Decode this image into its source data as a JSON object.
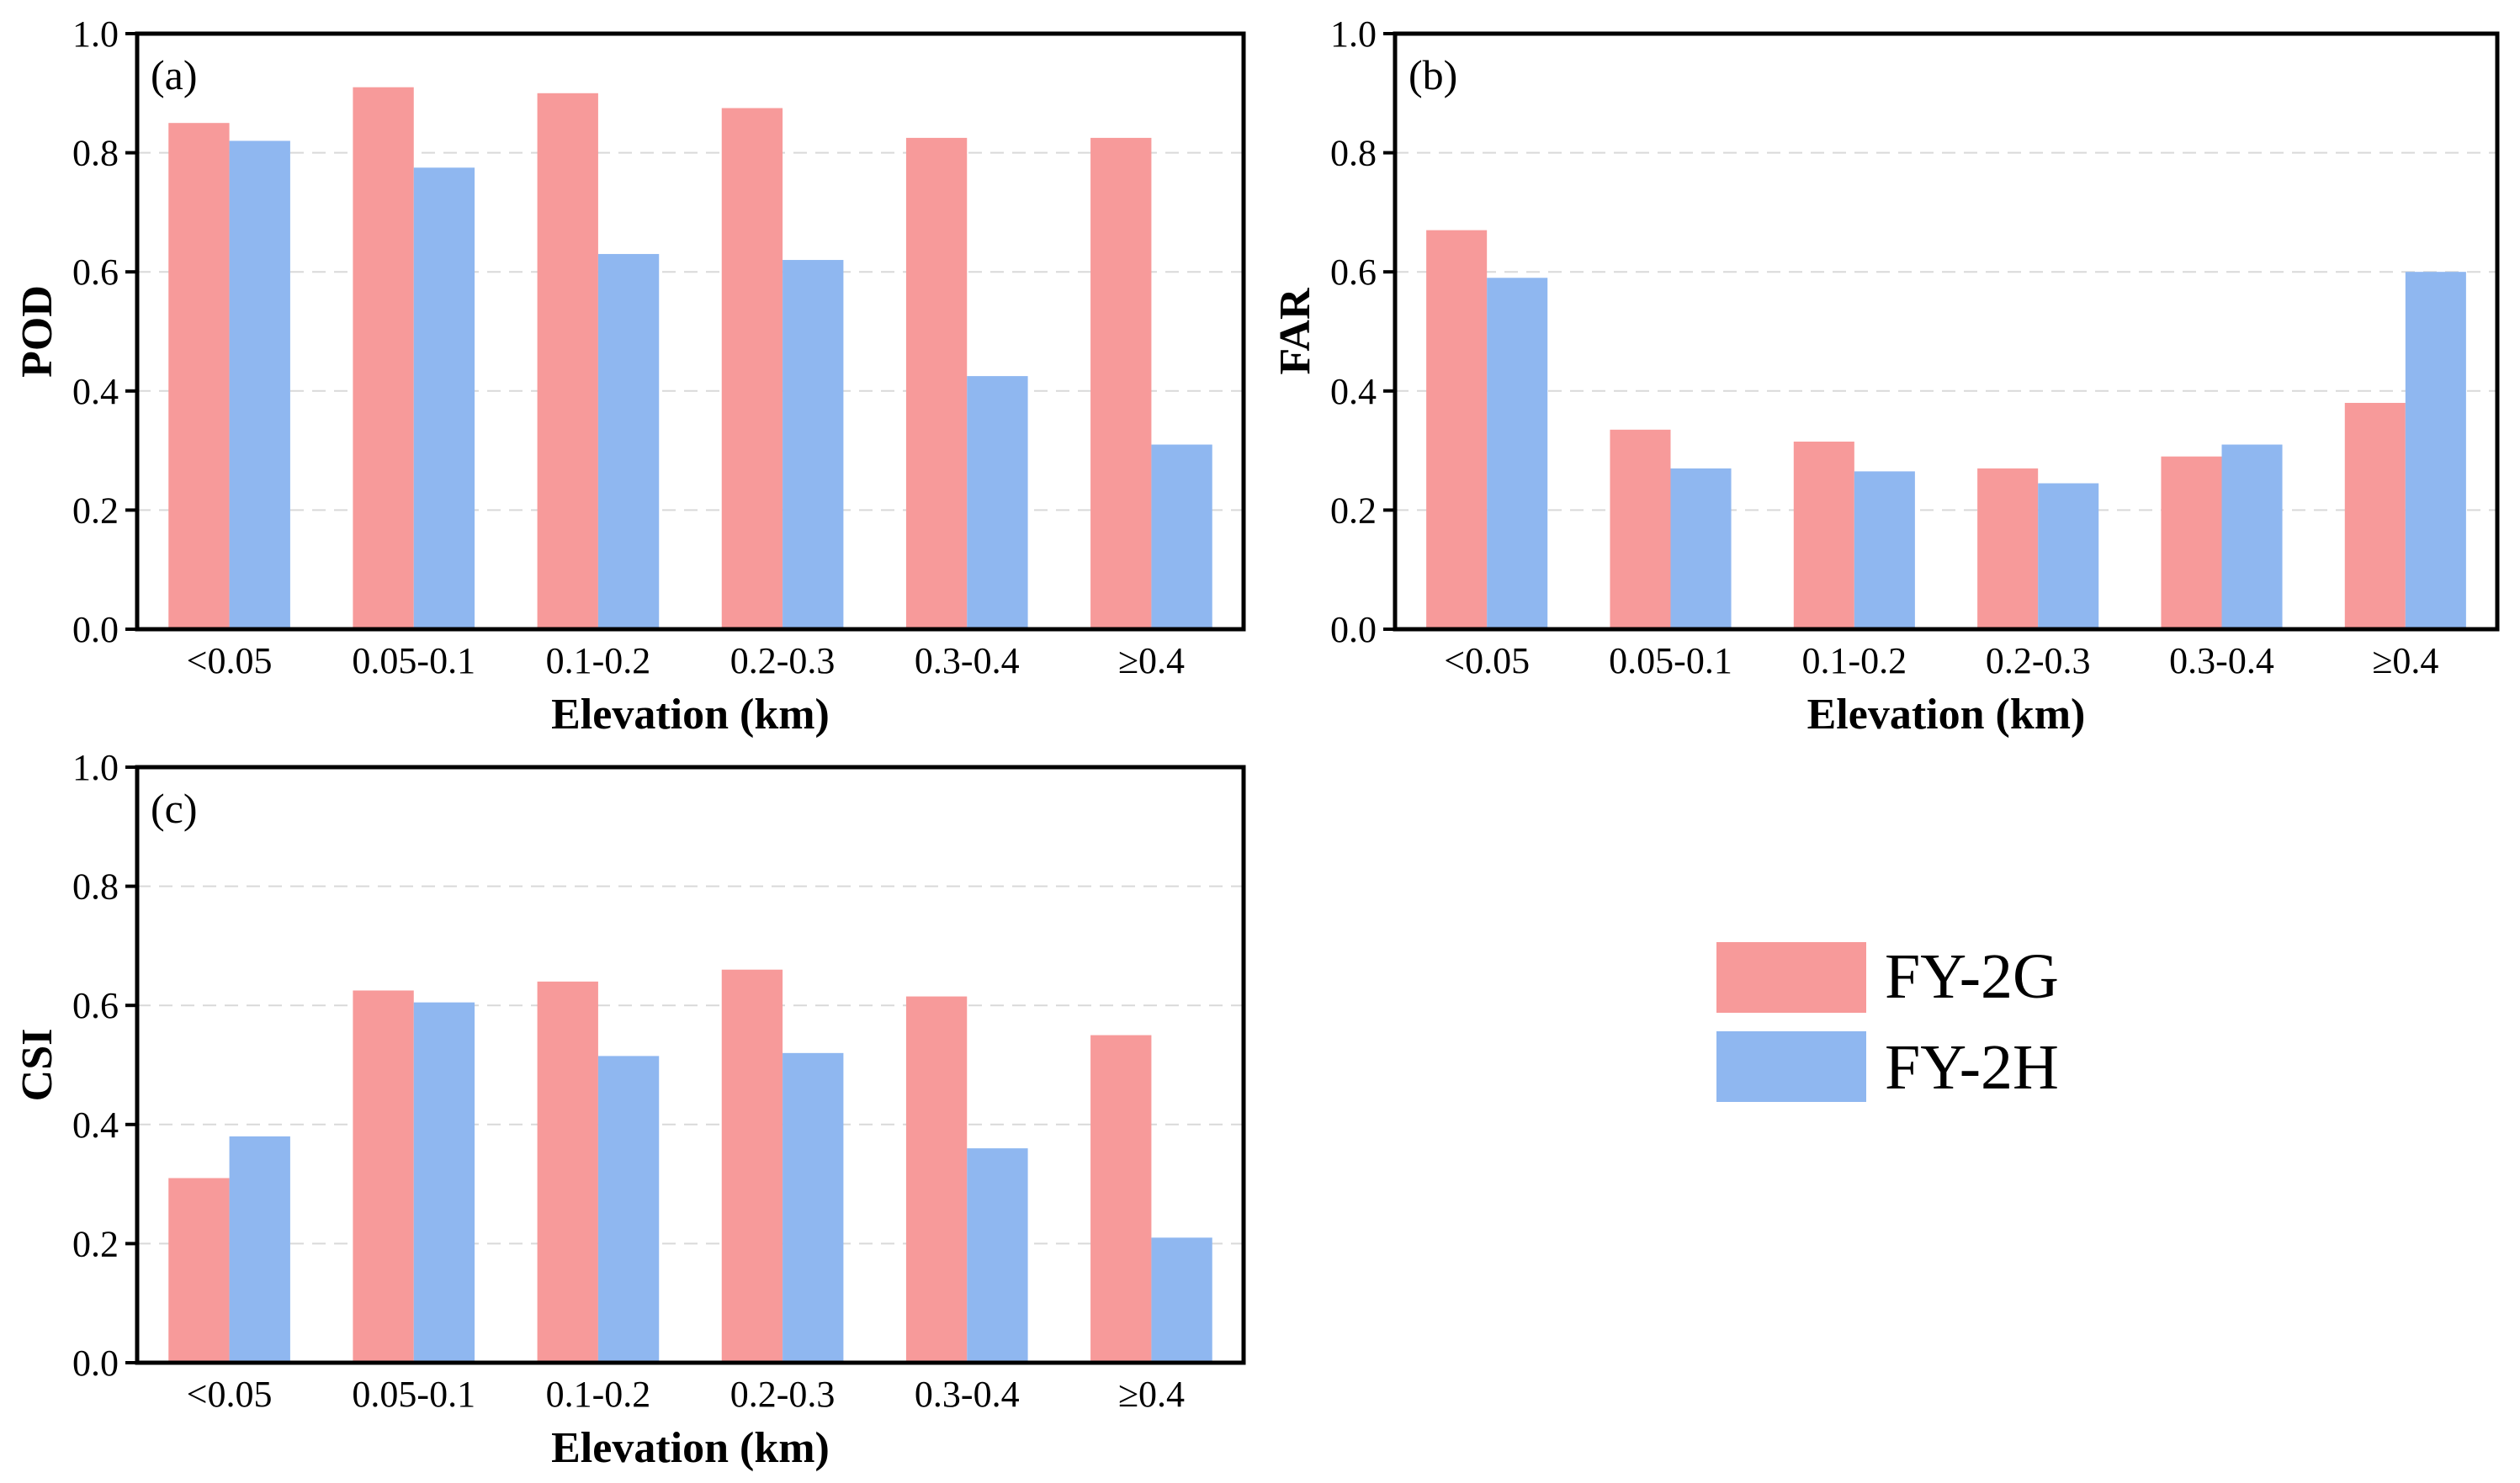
{
  "legend": {
    "series": [
      {
        "name": "FY-2G",
        "color": "#f79a9a"
      },
      {
        "name": "FY-2H",
        "color": "#8fb7f0"
      }
    ]
  },
  "chart_data": [
    {
      "type": "bar",
      "panel_label": "(a)",
      "title": "",
      "xlabel": "Elevation (km)",
      "ylabel": "POD",
      "ylim": [
        0,
        1.0
      ],
      "yticks": [
        "0.0",
        "0.2",
        "0.4",
        "0.6",
        "0.8",
        "1.0"
      ],
      "categories": [
        "<0.05",
        "0.05-0.1",
        "0.1-0.2",
        "0.2-0.3",
        "0.3-0.4",
        "≥0.4"
      ],
      "series": [
        {
          "name": "FY-2G",
          "values": [
            0.85,
            0.91,
            0.9,
            0.875,
            0.825,
            0.825
          ]
        },
        {
          "name": "FY-2H",
          "values": [
            0.82,
            0.775,
            0.63,
            0.62,
            0.425,
            0.31
          ]
        }
      ]
    },
    {
      "type": "bar",
      "panel_label": "(b)",
      "title": "",
      "xlabel": "Elevation (km)",
      "ylabel": "FAR",
      "ylim": [
        0,
        1.0
      ],
      "yticks": [
        "0.0",
        "0.2",
        "0.4",
        "0.6",
        "0.8",
        "1.0"
      ],
      "categories": [
        "<0.05",
        "0.05-0.1",
        "0.1-0.2",
        "0.2-0.3",
        "0.3-0.4",
        "≥0.4"
      ],
      "series": [
        {
          "name": "FY-2G",
          "values": [
            0.67,
            0.335,
            0.315,
            0.27,
            0.29,
            0.38
          ]
        },
        {
          "name": "FY-2H",
          "values": [
            0.59,
            0.27,
            0.265,
            0.245,
            0.31,
            0.6
          ]
        }
      ]
    },
    {
      "type": "bar",
      "panel_label": "(c)",
      "title": "",
      "xlabel": "Elevation (km)",
      "ylabel": "CSI",
      "ylim": [
        0,
        1.0
      ],
      "yticks": [
        "0.0",
        "0.2",
        "0.4",
        "0.6",
        "0.8",
        "1.0"
      ],
      "categories": [
        "<0.05",
        "0.05-0.1",
        "0.1-0.2",
        "0.2-0.3",
        "0.3-0.4",
        "≥0.4"
      ],
      "series": [
        {
          "name": "FY-2G",
          "values": [
            0.31,
            0.625,
            0.64,
            0.66,
            0.615,
            0.55
          ]
        },
        {
          "name": "FY-2H",
          "values": [
            0.38,
            0.605,
            0.515,
            0.52,
            0.36,
            0.21
          ]
        }
      ]
    }
  ]
}
